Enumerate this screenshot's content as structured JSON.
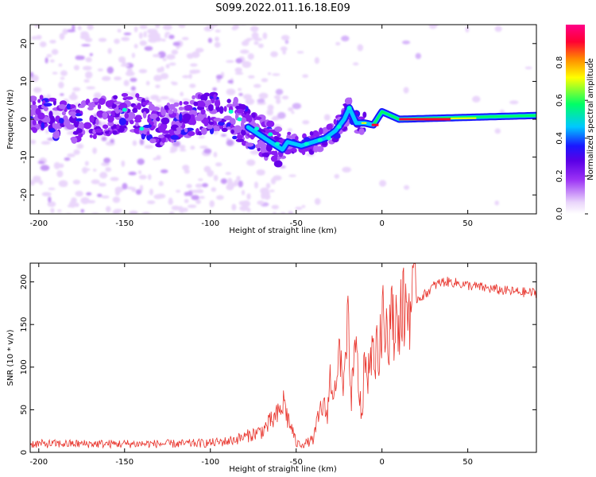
{
  "figure": {
    "title": "S099.2022.011.16.18.E09"
  },
  "chart_data": [
    {
      "type": "heatmap",
      "xlabel": "Height of straight line (km)",
      "ylabel": "Frequency (Hz)",
      "xlim": [
        -205,
        90
      ],
      "ylim": [
        -25,
        25
      ],
      "x_ticks": [
        -200,
        -150,
        -100,
        -50,
        0,
        50
      ],
      "y_ticks": [
        -20,
        -10,
        0,
        10,
        20
      ],
      "colorbar": {
        "label": "Normalized spectral amplitude",
        "range": [
          0,
          1
        ],
        "ticks": [
          0.0,
          0.2,
          0.4,
          0.6,
          0.8
        ],
        "colormap": [
          "#ffffff",
          "#ead6fb",
          "#9c33f5",
          "#5a00e6",
          "#1a18ff",
          "#00c8ff",
          "#00ff66",
          "#ffff00",
          "#ff8800",
          "#ff0033",
          "#ff0088"
        ]
      },
      "ridge_center": [
        {
          "x": -205,
          "y": 2
        },
        {
          "x": -180,
          "y": -1
        },
        {
          "x": -160,
          "y": 1
        },
        {
          "x": -145,
          "y": 2
        },
        {
          "x": -130,
          "y": -2
        },
        {
          "x": -110,
          "y": 1
        },
        {
          "x": -95,
          "y": 2
        },
        {
          "x": -85,
          "y": 0
        },
        {
          "x": -75,
          "y": -3
        },
        {
          "x": -65,
          "y": -6
        },
        {
          "x": -58,
          "y": -8
        },
        {
          "x": -55,
          "y": -6
        },
        {
          "x": -47,
          "y": -7
        },
        {
          "x": -40,
          "y": -6
        },
        {
          "x": -33,
          "y": -5
        },
        {
          "x": -27,
          "y": -3
        },
        {
          "x": -22,
          "y": 0
        },
        {
          "x": -19,
          "y": 3
        },
        {
          "x": -15,
          "y": -1
        },
        {
          "x": -10,
          "y": -1
        },
        {
          "x": -5,
          "y": -1.5
        },
        {
          "x": 0,
          "y": 2
        },
        {
          "x": 5,
          "y": 1
        },
        {
          "x": 10,
          "y": 0
        },
        {
          "x": 50,
          "y": 0.5
        },
        {
          "x": 90,
          "y": 1
        }
      ]
    },
    {
      "type": "line",
      "xlabel": "Height of straight line (km)",
      "ylabel": "SNR (10 * v/v)",
      "xlim": [
        -205,
        90
      ],
      "ylim": [
        0,
        222
      ],
      "x_ticks": [
        -200,
        -150,
        -100,
        -50,
        0,
        50
      ],
      "y_ticks": [
        0,
        50,
        100,
        150,
        200
      ],
      "color": "#e8332b",
      "series": [
        {
          "x": [
            -205,
            -180,
            -150,
            -120,
            -100,
            -90,
            -80,
            -70,
            -65,
            -60,
            -57,
            -55,
            -52,
            -50,
            -45,
            -40,
            -37,
            -35,
            -32,
            -30,
            -27,
            -25,
            -22,
            -20,
            -18,
            -15,
            -12,
            -10,
            -7,
            -5,
            -2,
            0,
            5,
            10,
            15,
            20,
            25,
            30,
            35,
            40,
            45,
            50,
            60,
            70,
            80,
            90
          ],
          "y": [
            10,
            10,
            10,
            10,
            11,
            13,
            18,
            25,
            35,
            45,
            60,
            40,
            25,
            10,
            10,
            15,
            40,
            55,
            45,
            90,
            60,
            115,
            70,
            150,
            65,
            120,
            40,
            105,
            90,
            130,
            110,
            140,
            150,
            165,
            170,
            180,
            185,
            195,
            200,
            200,
            198,
            196,
            193,
            190,
            188,
            187
          ]
        }
      ]
    }
  ]
}
